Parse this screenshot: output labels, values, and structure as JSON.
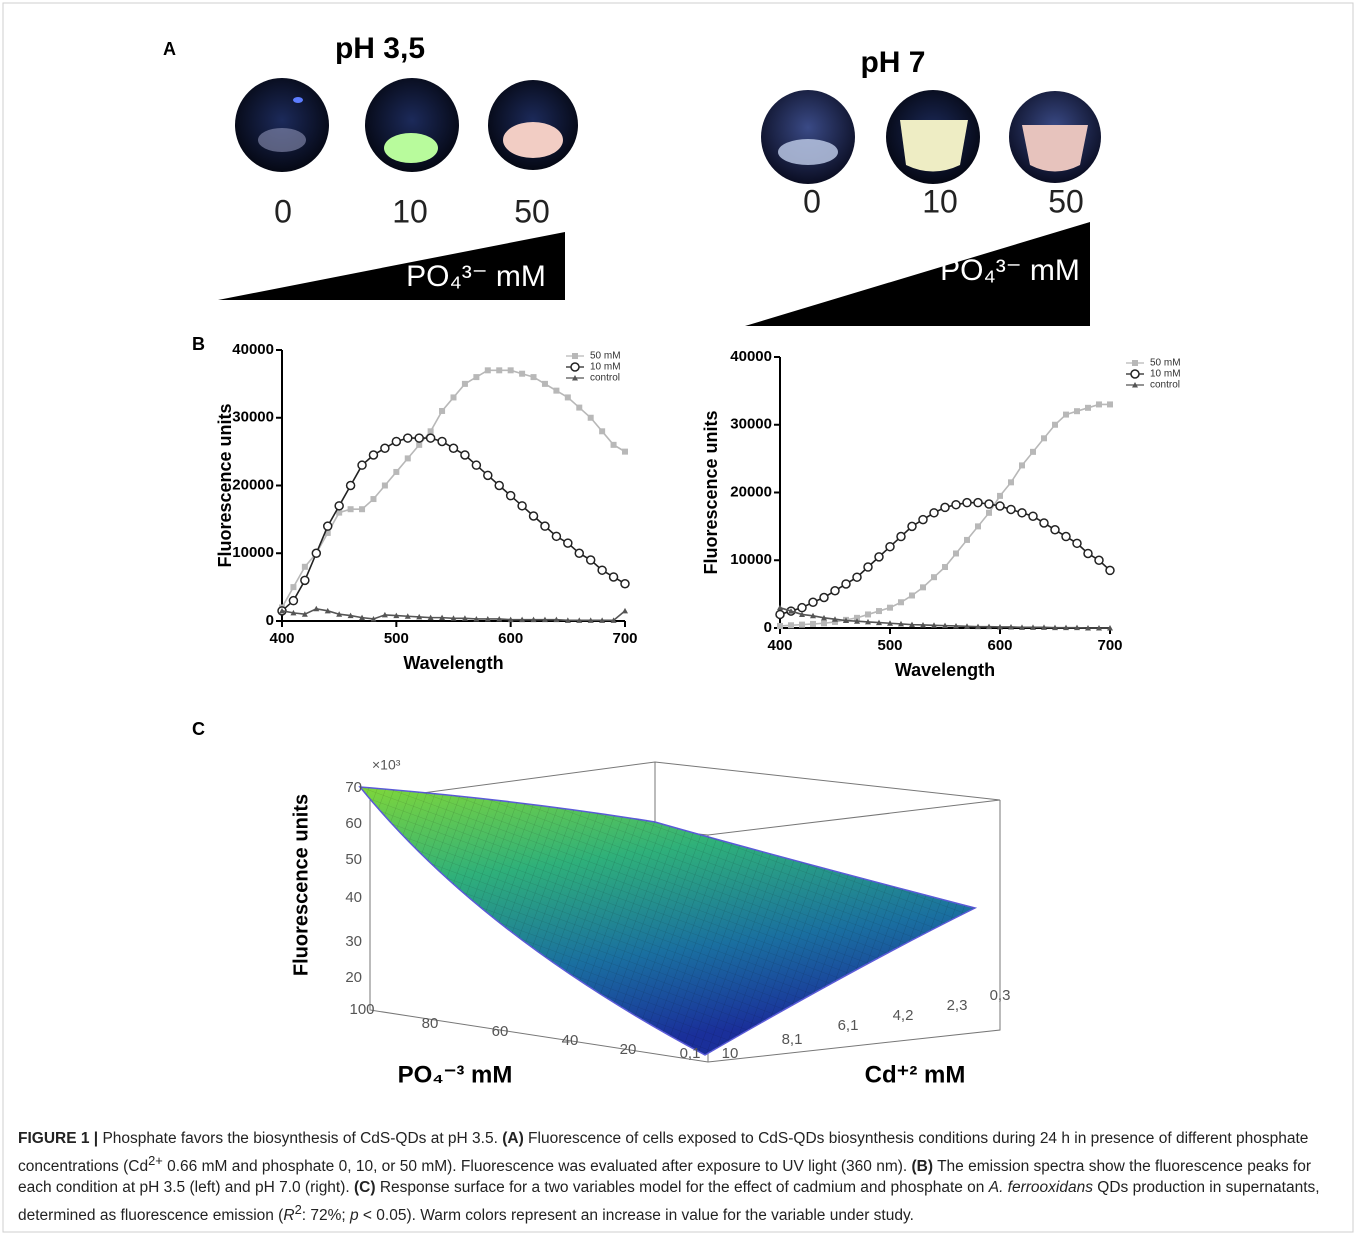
{
  "panel_a": {
    "label": "A",
    "groups": [
      {
        "title": "pH 3,5",
        "concentrations": [
          0,
          10,
          50
        ],
        "gradient_label": "PO₄³⁻ mM"
      },
      {
        "title": "pH 7",
        "concentrations": [
          0,
          10,
          50
        ],
        "gradient_label": "PO₄³⁻ mM"
      }
    ]
  },
  "panel_b": {
    "label": "B"
  },
  "chart_data": [
    {
      "type": "line",
      "xlabel": "Wavelength",
      "ylabel": "Fluorescence units",
      "xlim": [
        400,
        700
      ],
      "xticks": [
        400,
        500,
        600,
        700
      ],
      "ylim": [
        0,
        40000
      ],
      "yticks": [
        0,
        10000,
        20000,
        30000,
        40000
      ],
      "legend": "upper right",
      "x": [
        400,
        410,
        420,
        430,
        440,
        450,
        460,
        470,
        480,
        490,
        500,
        510,
        520,
        530,
        540,
        550,
        560,
        570,
        580,
        590,
        600,
        610,
        620,
        630,
        640,
        650,
        660,
        670,
        680,
        690,
        700
      ],
      "series": [
        {
          "name": "50 mM",
          "color": "#b8b8b8",
          "marker": "square",
          "values": [
            2000,
            5000,
            8000,
            10000,
            13000,
            16000,
            16500,
            16500,
            18000,
            20000,
            22000,
            24000,
            26000,
            28000,
            31000,
            33000,
            35000,
            36000,
            37000,
            37000,
            37000,
            36500,
            36000,
            35000,
            34000,
            33000,
            31500,
            30000,
            28000,
            26000,
            25000
          ]
        },
        {
          "name": "10 mM",
          "color": "#222222",
          "marker": "circle",
          "values": [
            1500,
            3000,
            6000,
            10000,
            14000,
            17000,
            20000,
            23000,
            24500,
            25500,
            26500,
            27000,
            27000,
            27000,
            26500,
            25500,
            24500,
            23000,
            21500,
            20000,
            18500,
            17000,
            15500,
            14000,
            12500,
            11500,
            10000,
            9000,
            7500,
            6500,
            5500
          ]
        },
        {
          "name": "control",
          "color": "#555555",
          "marker": "triangle",
          "values": [
            1500,
            1200,
            1000,
            1800,
            1500,
            1000,
            800,
            500,
            300,
            900,
            800,
            700,
            600,
            500,
            500,
            400,
            400,
            300,
            300,
            300,
            200,
            200,
            200,
            200,
            200,
            100,
            100,
            100,
            100,
            100,
            1500
          ]
        }
      ]
    },
    {
      "type": "line",
      "xlabel": "Wavelength",
      "ylabel": "Fluorescence units",
      "xlim": [
        400,
        700
      ],
      "xticks": [
        400,
        500,
        600,
        700
      ],
      "ylim": [
        0,
        40000
      ],
      "yticks": [
        0,
        10000,
        20000,
        30000,
        40000
      ],
      "legend": "upper right",
      "x": [
        400,
        410,
        420,
        430,
        440,
        450,
        460,
        470,
        480,
        490,
        500,
        510,
        520,
        530,
        540,
        550,
        560,
        570,
        580,
        590,
        600,
        610,
        620,
        630,
        640,
        650,
        660,
        670,
        680,
        690,
        700
      ],
      "series": [
        {
          "name": "50 mM",
          "color": "#b8b8b8",
          "marker": "square",
          "values": [
            300,
            400,
            500,
            600,
            700,
            900,
            1200,
            1500,
            2000,
            2500,
            3000,
            3800,
            4800,
            6000,
            7500,
            9000,
            11000,
            13000,
            15000,
            17000,
            19500,
            21500,
            24000,
            26000,
            28000,
            30000,
            31500,
            32000,
            32500,
            33000,
            33000
          ]
        },
        {
          "name": "10 mM",
          "color": "#222222",
          "marker": "circle",
          "values": [
            2000,
            2500,
            3000,
            3800,
            4500,
            5500,
            6500,
            7500,
            9000,
            10500,
            12000,
            13500,
            15000,
            16000,
            17000,
            17800,
            18200,
            18500,
            18500,
            18300,
            18000,
            17500,
            17000,
            16500,
            15500,
            14500,
            13500,
            12500,
            11000,
            10000,
            8500
          ]
        },
        {
          "name": "control",
          "color": "#555555",
          "marker": "triangle",
          "values": [
            3000,
            2500,
            2000,
            1800,
            1500,
            1300,
            1100,
            1000,
            900,
            800,
            700,
            600,
            500,
            450,
            400,
            350,
            300,
            250,
            200,
            200,
            150,
            150,
            100,
            100,
            100,
            50,
            50,
            50,
            0,
            0,
            0
          ]
        }
      ]
    }
  ],
  "panel_c": {
    "label": "C",
    "z_scale": "×10³",
    "z_axis_label": "Fluorescence units",
    "z_ticks": [
      70,
      60,
      50,
      40,
      30,
      20
    ],
    "x_axis_label": "PO₄⁻³ mM",
    "x_ticks": [
      100,
      80,
      60,
      40,
      20,
      "0,1"
    ],
    "y_axis_label": "Cd⁺² mM",
    "y_ticks": [
      10,
      "8,1",
      "6,1",
      "4,2",
      "2,3",
      "0,3"
    ]
  },
  "caption": {
    "parts": [
      "FIGURE 1 |",
      " Phosphate favors the biosynthesis of CdS-QDs at pH 3.5. ",
      "(A)",
      " Fluorescence of cells exposed to CdS-QDs biosynthesis conditions during 24 h in presence of different phosphate concentrations (Cd",
      "2+",
      " 0.66 mM and phosphate 0, 10, or 50 mM). Fluorescence was evaluated after exposure to UV light (360 nm). ",
      "(B)",
      " The emission spectra show the fluorescence peaks for each condition at pH 3.5 (left) and pH 7.0 (right). ",
      "(C)",
      " Response surface for a two variables model for the effect of cadmium and phosphate on ",
      "A. ferrooxidans",
      " QDs production in supernatants, determined as fluorescence emission (",
      "R",
      "2",
      ": 72%; ",
      "p",
      " < 0.05). Warm colors represent an increase in value for the variable under study."
    ]
  }
}
